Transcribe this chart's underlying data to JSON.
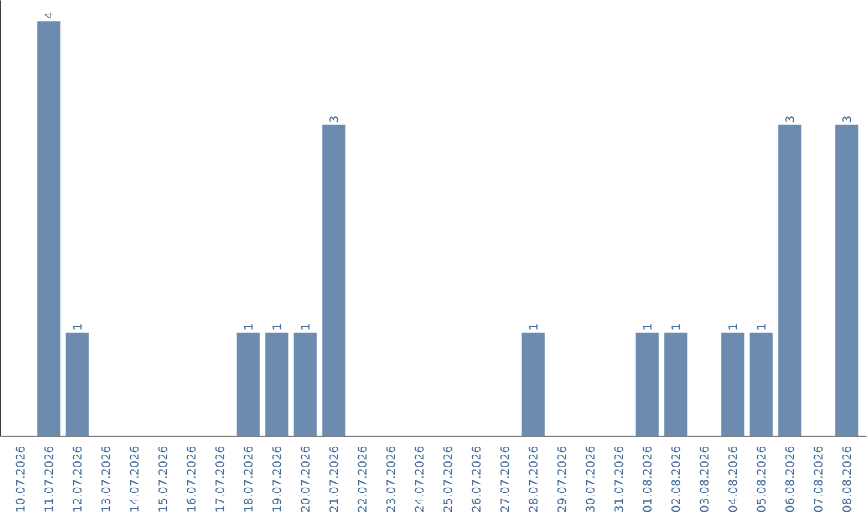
{
  "chart_data": {
    "type": "bar",
    "categories": [
      "10.07.2026",
      "11.07.2026",
      "12.07.2026",
      "13.07.2026",
      "14.07.2026",
      "15.07.2026",
      "16.07.2026",
      "17.07.2026",
      "18.07.2026",
      "19.07.2026",
      "20.07.2026",
      "21.07.2026",
      "22.07.2026",
      "23.07.2026",
      "24.07.2026",
      "25.07.2026",
      "26.07.2026",
      "27.07.2026",
      "28.07.2026",
      "29.07.2026",
      "30.07.2026",
      "31.07.2026",
      "01.08.2026",
      "02.08.2026",
      "03.08.2026",
      "04.08.2026",
      "05.08.2026",
      "06.08.2026",
      "07.08.2026",
      "08.08.2026"
    ],
    "values": [
      0,
      4,
      1,
      0,
      0,
      0,
      0,
      0,
      1,
      1,
      1,
      3,
      0,
      0,
      0,
      0,
      0,
      0,
      1,
      0,
      0,
      0,
      1,
      1,
      0,
      1,
      1,
      3,
      0,
      3
    ],
    "value_labels": [
      null,
      "4",
      "1",
      null,
      null,
      null,
      null,
      null,
      "1",
      "1",
      "1",
      "3",
      null,
      null,
      null,
      null,
      null,
      null,
      "1",
      null,
      null,
      null,
      "1",
      "1",
      null,
      "1",
      "1",
      "3",
      null,
      "3"
    ],
    "color": "#6b8cae"
  }
}
